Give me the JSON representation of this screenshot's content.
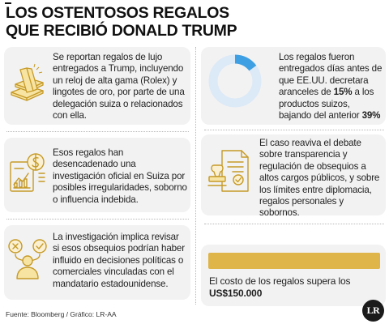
{
  "title": {
    "line1": "LOS OSTENTOSOS REGALOS",
    "line2": "QUE RECIBIÓ DONALD TRUMP"
  },
  "cards": {
    "gifts": {
      "text": "Se reportan regalos de lujo entregados a Trump, incluyendo un reloj de alta gama (Rolex) y lingotes de oro, por parte de una delegación suiza o relacionados con ella.",
      "icon": "gold-bars-icon"
    },
    "tariffs": {
      "text_before": "Los regalos fueron entregados días antes de que EE.UU. decretara aranceles de ",
      "new_rate": "15%",
      "text_middle": " a los productos suizos, bajando del anterior ",
      "old_rate": "39%",
      "donut_fraction": 0.15,
      "icon": "donut-chart-icon"
    },
    "investigation": {
      "text": "Esos regalos han desencadenado una investigación oficial en Suiza por posibles irregularidades, soborno o influencia indebida.",
      "icon": "financial-report-icon"
    },
    "debate": {
      "text": "El caso reaviva el debate sobre transparencia y regulación de obsequios a altos cargos públicos, y sobre los límites entre diplomacia, regalos personales y sobornos.",
      "icon": "stamp-document-icon"
    },
    "review": {
      "text": "La investigación implica revisar si esos obsequios podrían haber influido en decisiones políticas o comerciales vinculadas con el mandatario estadounidense.",
      "icon": "decision-person-icon"
    },
    "cost": {
      "text": "El costo de los regalos supera los ",
      "amount": "US$150.000"
    }
  },
  "source": "Fuente: Bloomberg / Gráfico: LR-AA",
  "badge": "LR",
  "colors": {
    "gold": "#dfb54a",
    "card_bg": "#f2f2f2",
    "donut_light": "#dce9f7",
    "donut_accent": "#3ea0e2"
  }
}
